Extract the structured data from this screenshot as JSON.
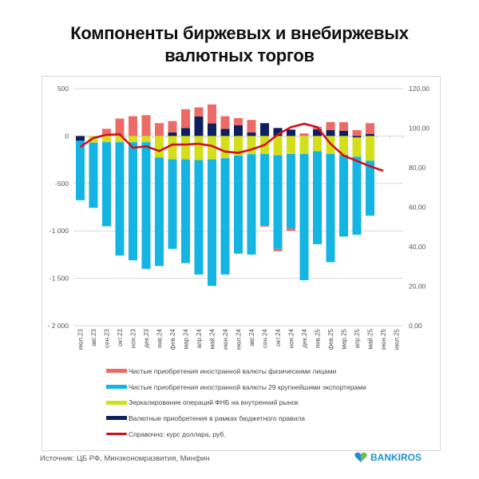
{
  "title_line1": "Компоненты биржевых и внебиржевых",
  "title_line2": "валютных торгов",
  "source": "Источник: ЦБ РФ, Минэкономразвития, Минфин",
  "logo_text": "BANKIROS",
  "chart_data": {
    "type": "bar",
    "stacked": true,
    "title": "Компоненты биржевых и внебиржевых валютных торгов",
    "categories": [
      "июл.23",
      "авг.23",
      "сен.23",
      "окт.23",
      "ноя.23",
      "дек.23",
      "янв.24",
      "фев.24",
      "мар.24",
      "апр.24",
      "май.24",
      "июн.24",
      "июл.24",
      "авг.24",
      "сен.24",
      "окт.24",
      "ноя.24",
      "дек.24",
      "янв.25",
      "фев.25",
      "мар.25",
      "апр.25",
      "май.25",
      "июн.25",
      "июл.25"
    ],
    "y_left": {
      "min": -2000,
      "max": 500,
      "ticks": [
        500,
        0,
        -500,
        -1000,
        -1500,
        -2000
      ],
      "tick_labels": [
        "500",
        "0",
        "-500",
        "-1 000",
        "-1 500",
        "- 2 000"
      ]
    },
    "y_right": {
      "min": 0,
      "max": 120,
      "ticks": [
        120,
        100,
        80,
        60,
        40,
        20,
        0
      ],
      "tick_labels": [
        "120,00",
        "100,00",
        "80,00",
        "60,00",
        "40,00",
        "20,00",
        "0,00"
      ]
    },
    "grid": true,
    "legend_position": "bottom",
    "series": [
      {
        "name": "Чистые приобретения иностранной валюты физическими лицами",
        "color": "#ec6b66",
        "type": "bar",
        "values": [
          0,
          0,
          76,
          184,
          209,
          220,
          136,
          121,
          198,
          96,
          200,
          133,
          76,
          133,
          -15,
          -25,
          -25,
          28,
          28,
          85,
          90,
          62,
          113,
          null,
          null
        ]
      },
      {
        "name": "Чистые приобретения иностранной валюты 29 крупнейшими экспортерами",
        "color": "#14b4e3",
        "type": "bar",
        "values": [
          -627,
          -687,
          -887,
          -1195,
          -1245,
          -1335,
          -1144,
          -944,
          -1094,
          -1206,
          -1334,
          -1226,
          -1034,
          -1058,
          -751,
          -987,
          -786,
          -1331,
          -979,
          -1141,
          -862,
          -822,
          -580,
          null,
          null
        ]
      },
      {
        "name": "Зеркалирование операций ФНБ на внутренний рынок",
        "color": "#d4df1c",
        "type": "bar",
        "values": [
          0,
          -70,
          -65,
          -65,
          -65,
          -65,
          -226,
          -246,
          -246,
          -254,
          -246,
          -234,
          -206,
          -192,
          -189,
          -203,
          -189,
          -189,
          -161,
          -189,
          -198,
          -203,
          -260,
          null,
          null
        ]
      },
      {
        "name": "Валютные приобретения в рамках бюджетного правила",
        "color": "#0d1f5c",
        "type": "bar",
        "values": [
          -50,
          0,
          0,
          0,
          0,
          0,
          0,
          37,
          85,
          206,
          133,
          76,
          113,
          37,
          136,
          85,
          68,
          0,
          70,
          62,
          56,
          -15,
          23,
          null,
          null
        ]
      },
      {
        "name": "Справочно: курс доллара, руб.",
        "color": "#d0101e",
        "type": "line",
        "axis": "right",
        "values": [
          90.5,
          95.0,
          96.6,
          96.9,
          90.1,
          90.8,
          88.4,
          91.7,
          91.7,
          92.1,
          91.0,
          88.1,
          87.5,
          89.2,
          91.5,
          96.8,
          100.5,
          102.2,
          100.5,
          92.1,
          86.1,
          83.4,
          80.7,
          78.4,
          null
        ]
      }
    ]
  }
}
